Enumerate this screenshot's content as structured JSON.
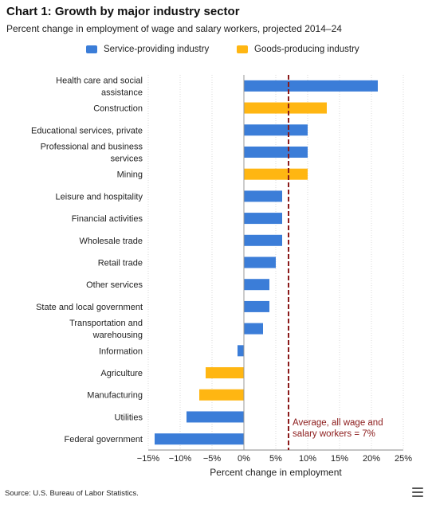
{
  "title": "Chart 1: Growth by major industry sector",
  "subtitle": "Percent change in employment of wage and salary workers, projected 2014–24",
  "source": "Source: U.S. Bureau of Labor Statistics.",
  "menu_icon": "hamburger-menu-icon",
  "colors": {
    "service": "#3b7dd8",
    "goods": "#ffb612",
    "average": "#8b1a1a",
    "grid": "#d8d8d8",
    "axis": "#888888"
  },
  "legend": [
    {
      "label": "Service-providing industry",
      "color": "#3b7dd8"
    },
    {
      "label": "Goods-producing industry",
      "color": "#ffb612"
    }
  ],
  "chart_data": {
    "type": "bar",
    "orientation": "horizontal",
    "categories": [
      [
        "Health care and social",
        "assistance"
      ],
      [
        "Construction"
      ],
      [
        "Educational services, private"
      ],
      [
        "Professional and business",
        "services"
      ],
      [
        "Mining"
      ],
      [
        "Leisure and hospitality"
      ],
      [
        "Financial activities"
      ],
      [
        "Wholesale trade"
      ],
      [
        "Retail trade"
      ],
      [
        "Other services"
      ],
      [
        "State and local government"
      ],
      [
        "Transportation and",
        "warehousing"
      ],
      [
        "Information"
      ],
      [
        "Agriculture"
      ],
      [
        "Manufacturing"
      ],
      [
        "Utilities"
      ],
      [
        "Federal government"
      ]
    ],
    "values": [
      21,
      13,
      10,
      10,
      10,
      6,
      6,
      6,
      5,
      4,
      4,
      3,
      -1,
      -6,
      -7,
      -9,
      -14
    ],
    "sector": [
      "Service-providing industry",
      "Goods-producing industry",
      "Service-providing industry",
      "Service-providing industry",
      "Goods-producing industry",
      "Service-providing industry",
      "Service-providing industry",
      "Service-providing industry",
      "Service-providing industry",
      "Service-providing industry",
      "Service-providing industry",
      "Service-providing industry",
      "Service-providing industry",
      "Goods-producing industry",
      "Goods-producing industry",
      "Service-providing industry",
      "Service-providing industry"
    ],
    "xlabel": "Percent change in employment",
    "xlim": [
      -15,
      25
    ],
    "xticks": [
      -15,
      -10,
      -5,
      0,
      5,
      10,
      15,
      20,
      25
    ],
    "xtick_labels": [
      "−15%",
      "−10%",
      "−5%",
      "0%",
      "5%",
      "10%",
      "15%",
      "20%",
      "25%"
    ],
    "grid": "vertical dotted",
    "legend_position": "top",
    "reference_line": {
      "value": 7,
      "label": [
        "Average, all wage and",
        "salary workers = 7%"
      ]
    }
  }
}
